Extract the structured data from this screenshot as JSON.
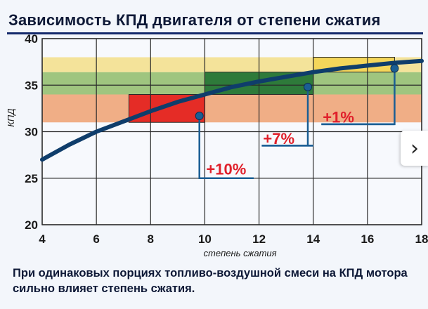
{
  "title": "Зависимость КПД двигателя от степени сжатия",
  "caption": "При одинаковых порциях топливо-воздушной смеси на КПД мотора сильно влияет степень сжатия.",
  "next_arrow_icon": "chevron-right-icon",
  "colors": {
    "band_orange": "#f0ae86",
    "band_green_light": "#9fc57f",
    "band_yellow_light": "#f4e39a",
    "band_green_dark": "#2e7a3a",
    "band_red": "#e52c26",
    "band_yellow_box": "#f4d65a",
    "curve": "#0f3d6b",
    "callout_line": "#1a5e94",
    "callout_text": "#e0202b",
    "grid": "#2a2a2a"
  },
  "chart_data": {
    "type": "line",
    "title": "Зависимость КПД двигателя от степени сжатия",
    "xlabel": "степень сжатия",
    "ylabel": "КПД",
    "xlim": [
      4,
      18
    ],
    "ylim": [
      20,
      40
    ],
    "x_ticks": [
      4,
      6,
      8,
      10,
      12,
      14,
      16,
      18
    ],
    "y_ticks": [
      20,
      25,
      30,
      35,
      40
    ],
    "grid": true,
    "series": [
      {
        "x": [
          4,
          5,
          6,
          7,
          8,
          9,
          10,
          11,
          12,
          13,
          14,
          15,
          16,
          17,
          18
        ],
        "y": [
          27.0,
          28.6,
          30.0,
          31.1,
          32.2,
          33.2,
          34.0,
          34.8,
          35.4,
          35.9,
          36.4,
          36.8,
          37.1,
          37.4,
          37.6
        ]
      }
    ],
    "bands": [
      {
        "y0": 31.0,
        "y1": 34.0,
        "color": "band_orange"
      },
      {
        "y0": 34.0,
        "y1": 36.4,
        "color": "band_green_light"
      },
      {
        "y0": 36.4,
        "y1": 38.0,
        "color": "band_yellow_light"
      }
    ],
    "boxes": [
      {
        "x0": 7.2,
        "x1": 10.0,
        "y0": 31.0,
        "y1": 34.0,
        "color": "band_red"
      },
      {
        "x0": 10.0,
        "x1": 14.0,
        "y0": 34.0,
        "y1": 36.4,
        "color": "band_green_dark"
      },
      {
        "x0": 14.0,
        "x1": 17.0,
        "y0": 36.4,
        "y1": 38.0,
        "color": "band_yellow_box"
      }
    ],
    "annotations": [
      {
        "text": "+10%",
        "point": [
          9.8,
          31.7
        ],
        "down_to": 25.0,
        "label_at": [
          10.0,
          26.0
        ],
        "line_to_x": 11.8
      },
      {
        "text": "+7%",
        "point": [
          13.8,
          34.8
        ],
        "down_to": 28.5,
        "label_at": [
          12.1,
          29.3
        ],
        "line_to_x": 14.0
      },
      {
        "text": "+1%",
        "point": [
          17.0,
          36.8
        ],
        "down_to": 30.8,
        "label_at": [
          14.3,
          31.6
        ],
        "line_to_x": 15.6
      }
    ]
  }
}
